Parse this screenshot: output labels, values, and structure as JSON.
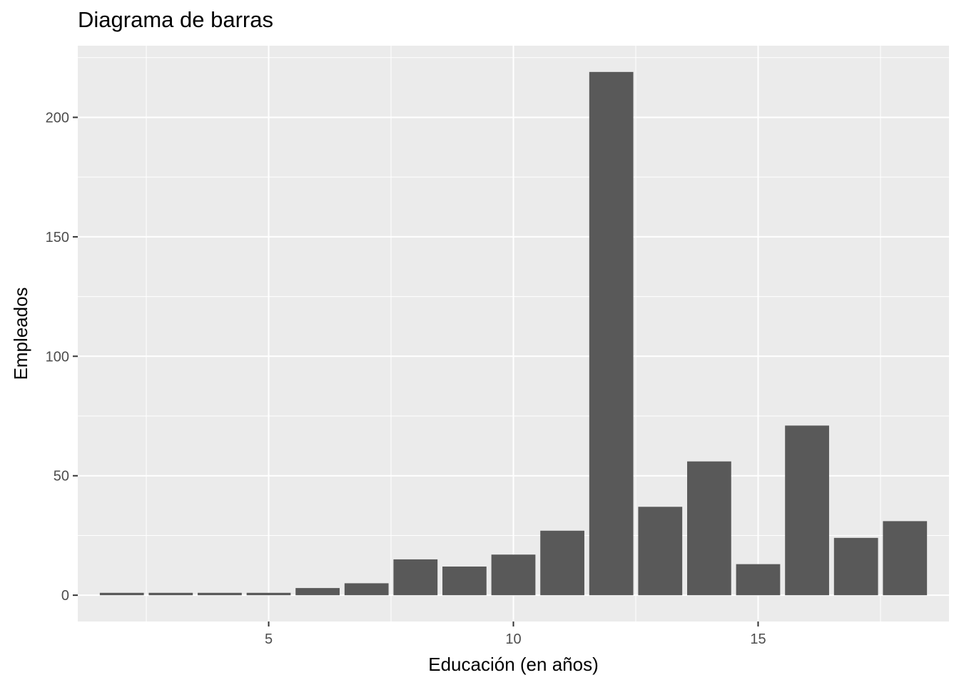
{
  "chart_data": {
    "type": "bar",
    "title": "Diagrama de barras",
    "xlabel": "Educación (en años)",
    "ylabel": "Empleados",
    "x": [
      2,
      3,
      4,
      5,
      6,
      7,
      8,
      9,
      10,
      11,
      12,
      13,
      14,
      15,
      16,
      17,
      18
    ],
    "values": [
      1,
      1,
      1,
      1,
      3,
      5,
      15,
      12,
      17,
      27,
      219,
      37,
      56,
      13,
      71,
      24,
      31
    ],
    "xlim": [
      1.1,
      18.9
    ],
    "ylim": [
      -11,
      230
    ],
    "xticks": [
      5,
      10,
      15
    ],
    "yticks": [
      0,
      50,
      100,
      150,
      200
    ],
    "bar_color": "#595959",
    "panel_color": "#ebebeb",
    "grid": true
  }
}
